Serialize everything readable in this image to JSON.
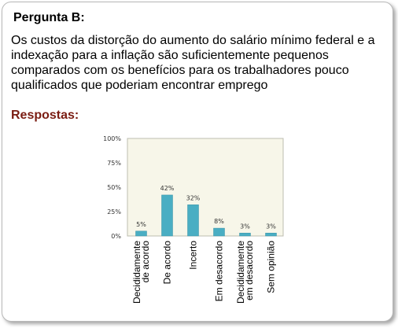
{
  "question": {
    "title": "Pergunta B:",
    "text": "Os custos da distorção do aumento do salário mínimo federal e a indexação para a inflação são suficientemente pequenos comparados com os benefícios para os trabalhadores pouco qualificados que poderiam encontrar emprego"
  },
  "answers_title": "Respostas:",
  "chart_data": {
    "type": "bar",
    "categories": [
      [
        "Decididamente",
        "de acordo"
      ],
      [
        "De acordo"
      ],
      [
        "Incerto"
      ],
      [
        "Em desacordo"
      ],
      [
        "Decididamente",
        "em desacordo"
      ],
      [
        "Sem opinião"
      ]
    ],
    "values": [
      5,
      42,
      32,
      8,
      3,
      3
    ],
    "value_labels": [
      "5%",
      "42%",
      "32%",
      "8%",
      "3%",
      "3%"
    ],
    "y_tick_labels": [
      "0%",
      "25%",
      "50%",
      "75%",
      "100%"
    ],
    "y_ticks": [
      0,
      25,
      50,
      75,
      100
    ],
    "ylim": [
      0,
      100
    ],
    "grid": false,
    "colors": {
      "bar": "#4aaec3",
      "bar_edge": "#3a93a8",
      "plot_bg": "#f7f6e9",
      "plot_border": "#bdbdb0"
    }
  }
}
